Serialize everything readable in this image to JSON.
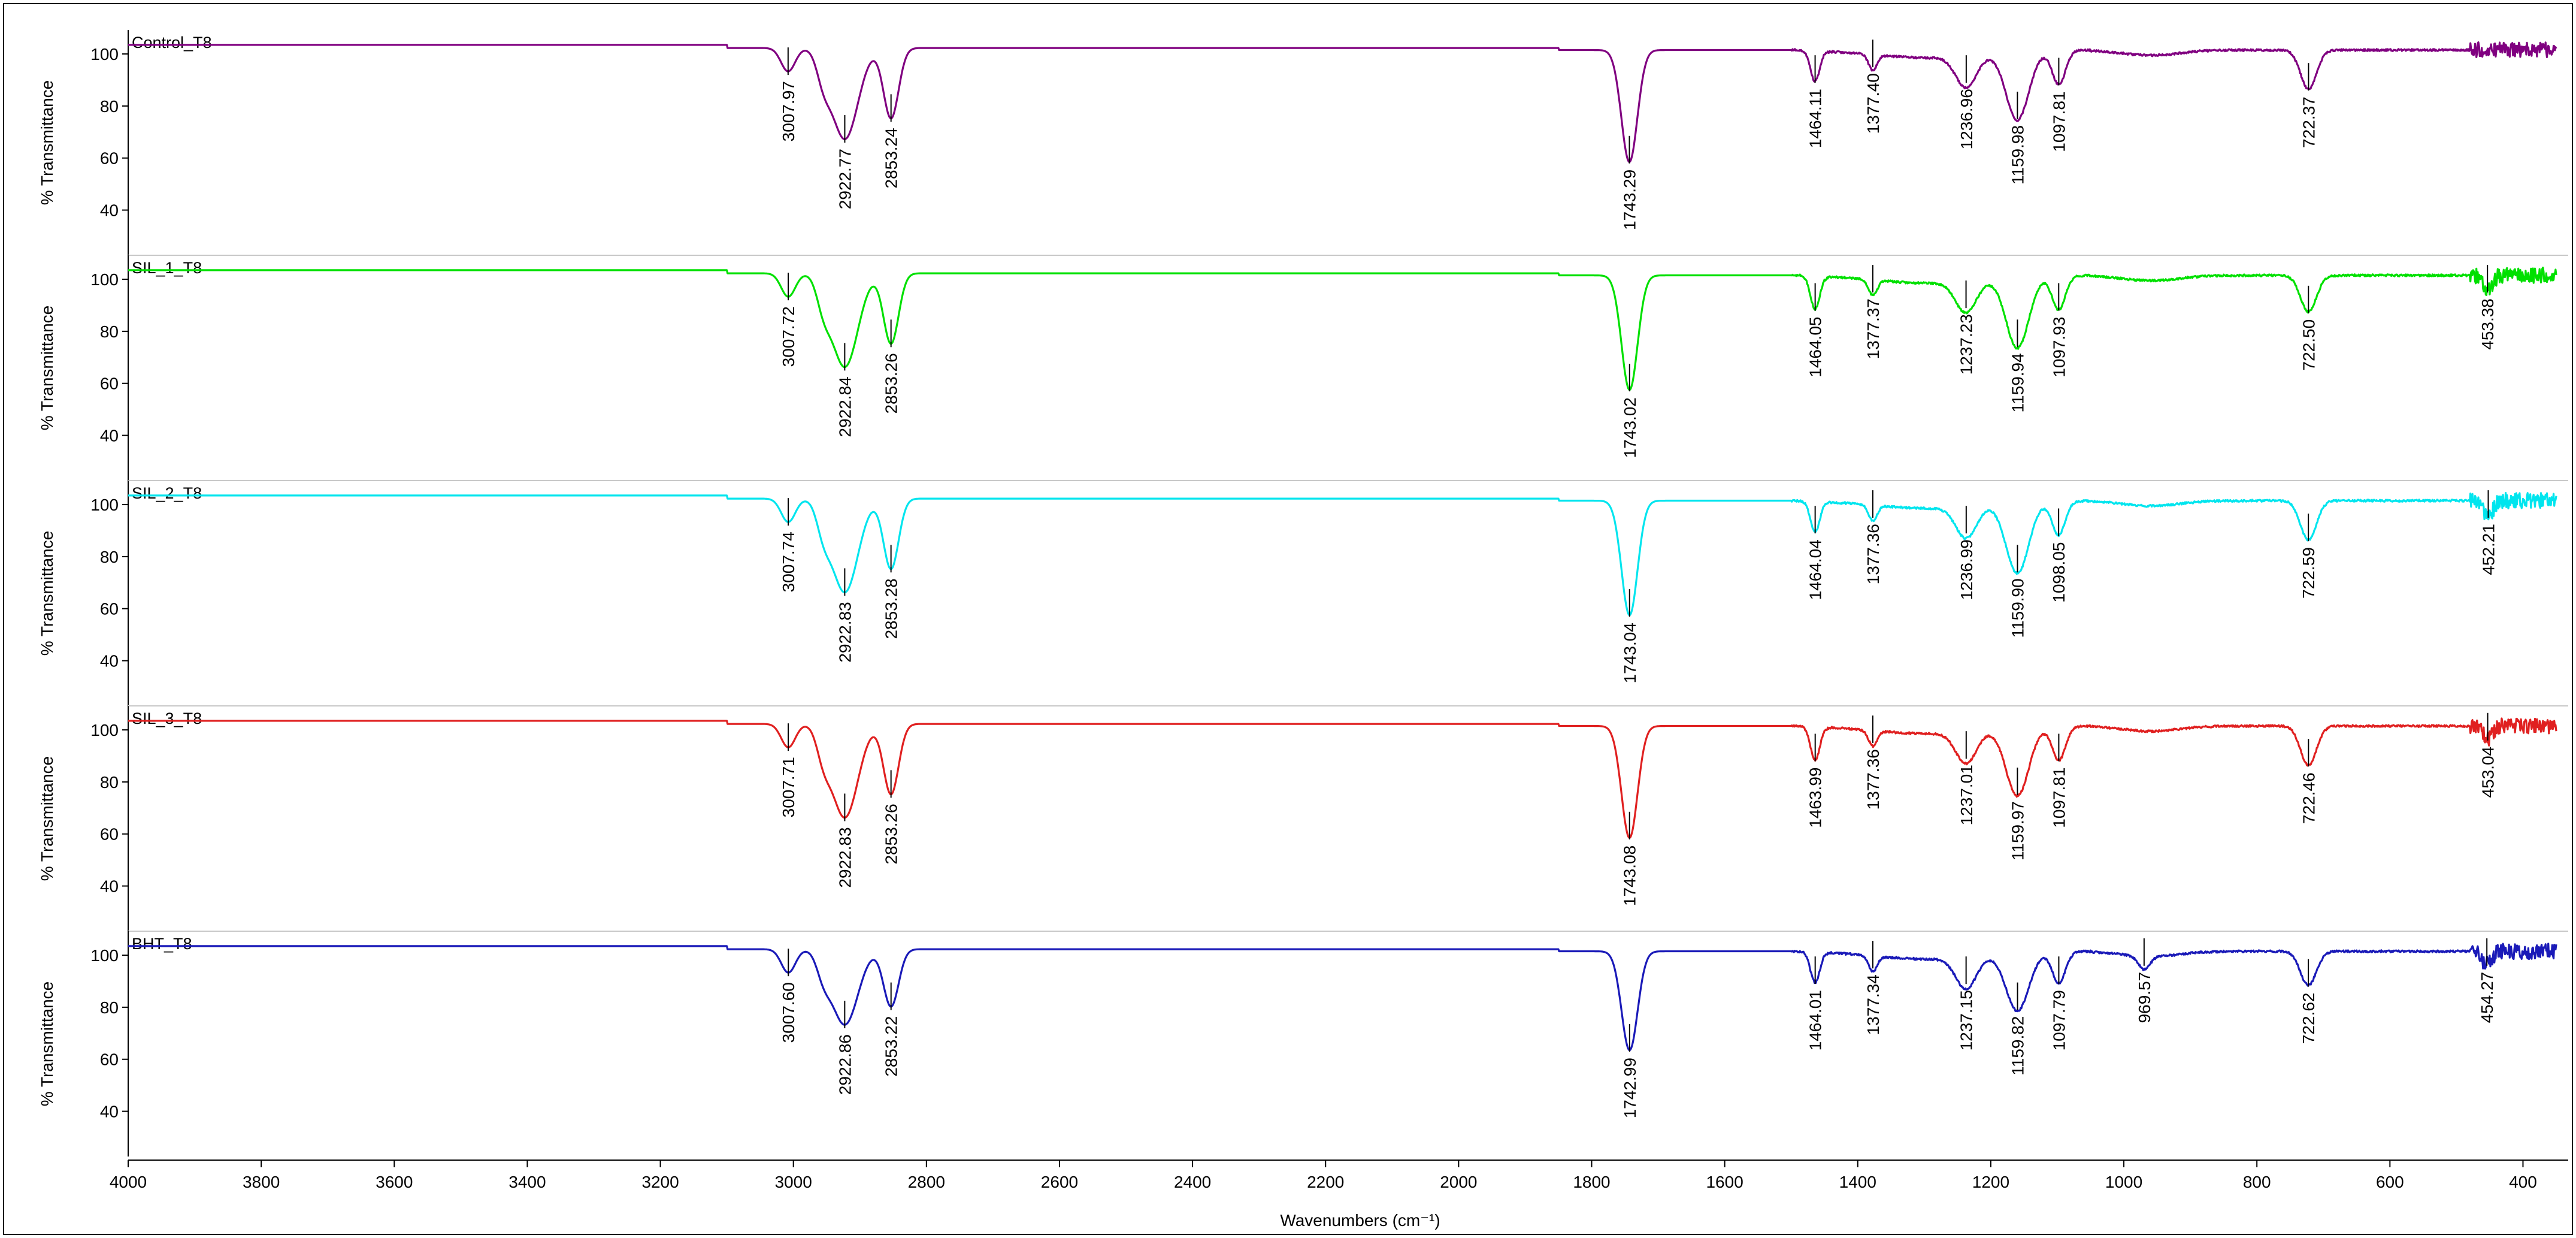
{
  "chart_data": {
    "type": "line",
    "xlabel": "Wavenumbers (cm⁻¹)",
    "xlim": [
      4000,
      350
    ],
    "xticks": [
      4000,
      3800,
      3600,
      3400,
      3200,
      3000,
      2800,
      2600,
      2400,
      2200,
      2000,
      1800,
      1600,
      1400,
      1200,
      1000,
      800,
      600,
      400
    ],
    "ylabel": "% Transmittance",
    "yticks": [
      40,
      60,
      80,
      100
    ],
    "ylim": [
      30,
      106
    ],
    "series": [
      {
        "name": "Control_T8",
        "color": "#800080",
        "baseline": 103.5,
        "peaks": [
          {
            "x": 3007.97,
            "depth": 9,
            "width": 15
          },
          {
            "x": 2922.77,
            "depth": 35,
            "width": 28
          },
          {
            "x": 2853.24,
            "depth": 27,
            "width": 16
          },
          {
            "x": 1743.29,
            "depth": 43,
            "width": 17
          },
          {
            "x": 1464.11,
            "depth": 12,
            "width": 10
          },
          {
            "x": 1377.4,
            "depth": 6,
            "width": 9
          },
          {
            "x": 1236.96,
            "depth": 12,
            "width": 22
          },
          {
            "x": 1159.98,
            "depth": 26,
            "width": 24
          },
          {
            "x": 1097.81,
            "depth": 13,
            "width": 14
          },
          {
            "x": 722.37,
            "depth": 15,
            "width": 17
          }
        ],
        "labels": [
          {
            "x": 3007.97,
            "text": "3007.97"
          },
          {
            "x": 2922.77,
            "text": "2922.77"
          },
          {
            "x": 2853.24,
            "text": "2853.24"
          },
          {
            "x": 1743.29,
            "text": "1743.29"
          },
          {
            "x": 1464.11,
            "text": "1464.11"
          },
          {
            "x": 1377.4,
            "text": "1377.40"
          },
          {
            "x": 1236.96,
            "text": "1236.96"
          },
          {
            "x": 1159.98,
            "text": "1159.98"
          },
          {
            "x": 1097.81,
            "text": "1097.81"
          },
          {
            "x": 722.37,
            "text": "722.37"
          }
        ]
      },
      {
        "name": "SIL_1_T8",
        "color": "#00e000",
        "baseline": 103.5,
        "peaks": [
          {
            "x": 3007.72,
            "depth": 9,
            "width": 15
          },
          {
            "x": 2922.84,
            "depth": 36,
            "width": 28
          },
          {
            "x": 2853.26,
            "depth": 27,
            "width": 16
          },
          {
            "x": 1743.02,
            "depth": 44,
            "width": 17
          },
          {
            "x": 1464.05,
            "depth": 13,
            "width": 10
          },
          {
            "x": 1377.37,
            "depth": 6,
            "width": 9
          },
          {
            "x": 1237.23,
            "depth": 12,
            "width": 22
          },
          {
            "x": 1159.94,
            "depth": 27,
            "width": 24
          },
          {
            "x": 1097.93,
            "depth": 13,
            "width": 14
          },
          {
            "x": 722.5,
            "depth": 14,
            "width": 17
          },
          {
            "x": 453.38,
            "depth": 6,
            "width": 10
          }
        ],
        "labels": [
          {
            "x": 3007.72,
            "text": "3007.72"
          },
          {
            "x": 2922.84,
            "text": "2922.84"
          },
          {
            "x": 2853.26,
            "text": "2853.26"
          },
          {
            "x": 1743.02,
            "text": "1743.02"
          },
          {
            "x": 1464.05,
            "text": "1464.05"
          },
          {
            "x": 1377.37,
            "text": "1377.37"
          },
          {
            "x": 1237.23,
            "text": "1237.23"
          },
          {
            "x": 1159.94,
            "text": "1159.94"
          },
          {
            "x": 1097.93,
            "text": "1097.93"
          },
          {
            "x": 722.5,
            "text": "722.50"
          },
          {
            "x": 453.38,
            "text": "453.38"
          }
        ]
      },
      {
        "name": "SIL_2_T8",
        "color": "#00e5ee",
        "baseline": 103.5,
        "peaks": [
          {
            "x": 3007.74,
            "depth": 9,
            "width": 15
          },
          {
            "x": 2922.83,
            "depth": 36,
            "width": 28
          },
          {
            "x": 2853.28,
            "depth": 27,
            "width": 16
          },
          {
            "x": 1743.04,
            "depth": 44,
            "width": 17
          },
          {
            "x": 1464.04,
            "depth": 12,
            "width": 10
          },
          {
            "x": 1377.36,
            "depth": 6,
            "width": 9
          },
          {
            "x": 1236.99,
            "depth": 12,
            "width": 22
          },
          {
            "x": 1159.9,
            "depth": 27,
            "width": 24
          },
          {
            "x": 1098.05,
            "depth": 13,
            "width": 14
          },
          {
            "x": 722.59,
            "depth": 15,
            "width": 17
          },
          {
            "x": 452.21,
            "depth": 6,
            "width": 10
          }
        ],
        "labels": [
          {
            "x": 3007.74,
            "text": "3007.74"
          },
          {
            "x": 2922.83,
            "text": "2922.83"
          },
          {
            "x": 2853.28,
            "text": "2853.28"
          },
          {
            "x": 1743.04,
            "text": "1743.04"
          },
          {
            "x": 1464.04,
            "text": "1464.04"
          },
          {
            "x": 1377.36,
            "text": "1377.36"
          },
          {
            "x": 1236.99,
            "text": "1236.99"
          },
          {
            "x": 1159.9,
            "text": "1159.90"
          },
          {
            "x": 1098.05,
            "text": "1098.05"
          },
          {
            "x": 722.59,
            "text": "722.59"
          },
          {
            "x": 452.21,
            "text": "452.21"
          }
        ]
      },
      {
        "name": "SIL_3_T8",
        "color": "#e02020",
        "baseline": 103.5,
        "peaks": [
          {
            "x": 3007.71,
            "depth": 9,
            "width": 15
          },
          {
            "x": 2922.83,
            "depth": 36,
            "width": 28
          },
          {
            "x": 2853.26,
            "depth": 27,
            "width": 16
          },
          {
            "x": 1743.08,
            "depth": 43,
            "width": 17
          },
          {
            "x": 1463.99,
            "depth": 13,
            "width": 10
          },
          {
            "x": 1377.36,
            "depth": 6,
            "width": 9
          },
          {
            "x": 1237.01,
            "depth": 12,
            "width": 22
          },
          {
            "x": 1159.97,
            "depth": 26,
            "width": 24
          },
          {
            "x": 1097.81,
            "depth": 13,
            "width": 14
          },
          {
            "x": 722.46,
            "depth": 15,
            "width": 17
          },
          {
            "x": 453.04,
            "depth": 5,
            "width": 10
          }
        ],
        "labels": [
          {
            "x": 3007.71,
            "text": "3007.71"
          },
          {
            "x": 2922.83,
            "text": "2922.83"
          },
          {
            "x": 2853.26,
            "text": "2853.26"
          },
          {
            "x": 1743.08,
            "text": "1743.08"
          },
          {
            "x": 1463.99,
            "text": "1463.99"
          },
          {
            "x": 1377.36,
            "text": "1377.36"
          },
          {
            "x": 1237.01,
            "text": "1237.01"
          },
          {
            "x": 1159.97,
            "text": "1159.97"
          },
          {
            "x": 1097.81,
            "text": "1097.81"
          },
          {
            "x": 722.46,
            "text": "722.46"
          },
          {
            "x": 453.04,
            "text": "453.04"
          }
        ]
      },
      {
        "name": "BHT_T8",
        "color": "#1a1ab8",
        "baseline": 103.5,
        "peaks": [
          {
            "x": 3007.6,
            "depth": 9,
            "width": 15
          },
          {
            "x": 2922.86,
            "depth": 29,
            "width": 28
          },
          {
            "x": 2853.22,
            "depth": 22,
            "width": 16
          },
          {
            "x": 1742.99,
            "depth": 38,
            "width": 17
          },
          {
            "x": 1464.01,
            "depth": 12,
            "width": 10
          },
          {
            "x": 1377.34,
            "depth": 6,
            "width": 9
          },
          {
            "x": 1237.15,
            "depth": 12,
            "width": 22
          },
          {
            "x": 1159.82,
            "depth": 22,
            "width": 24
          },
          {
            "x": 1097.79,
            "depth": 12,
            "width": 14
          },
          {
            "x": 969.57,
            "depth": 5,
            "width": 12
          },
          {
            "x": 722.62,
            "depth": 13,
            "width": 17
          },
          {
            "x": 454.27,
            "depth": 5,
            "width": 10
          }
        ],
        "labels": [
          {
            "x": 3007.6,
            "text": "3007.60"
          },
          {
            "x": 2922.86,
            "text": "2922.86"
          },
          {
            "x": 2853.22,
            "text": "2853.22"
          },
          {
            "x": 1742.99,
            "text": "1742.99"
          },
          {
            "x": 1464.01,
            "text": "1464.01"
          },
          {
            "x": 1377.34,
            "text": "1377.34"
          },
          {
            "x": 1237.15,
            "text": "1237.15"
          },
          {
            "x": 1159.82,
            "text": "1159.82"
          },
          {
            "x": 1097.79,
            "text": "1097.79"
          },
          {
            "x": 969.57,
            "text": "969.57"
          },
          {
            "x": 722.62,
            "text": "722.62"
          },
          {
            "x": 454.27,
            "text": "454.27"
          }
        ]
      }
    ]
  }
}
